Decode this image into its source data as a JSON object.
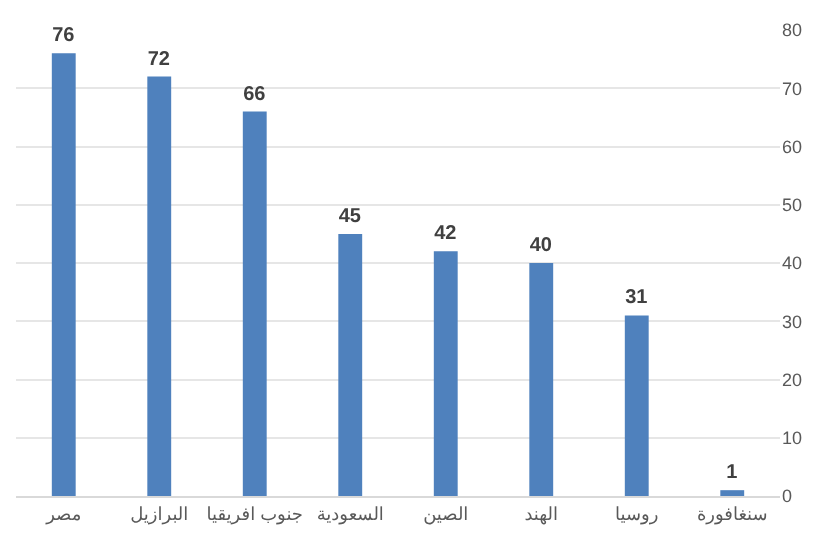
{
  "chart_data": {
    "type": "bar",
    "categories": [
      "مصر",
      "البرازيل",
      "جنوب افريقيا",
      "السعودية",
      "الصين",
      "الهند",
      "روسيا",
      "سنغافورة"
    ],
    "values": [
      76,
      72,
      66,
      45,
      42,
      40,
      31,
      1
    ],
    "color": "#4f81bd",
    "ylim": [
      0,
      80
    ],
    "yticks": [
      0,
      10,
      20,
      30,
      40,
      50,
      60,
      70,
      80
    ],
    "grid": "y",
    "data_labels": true
  }
}
